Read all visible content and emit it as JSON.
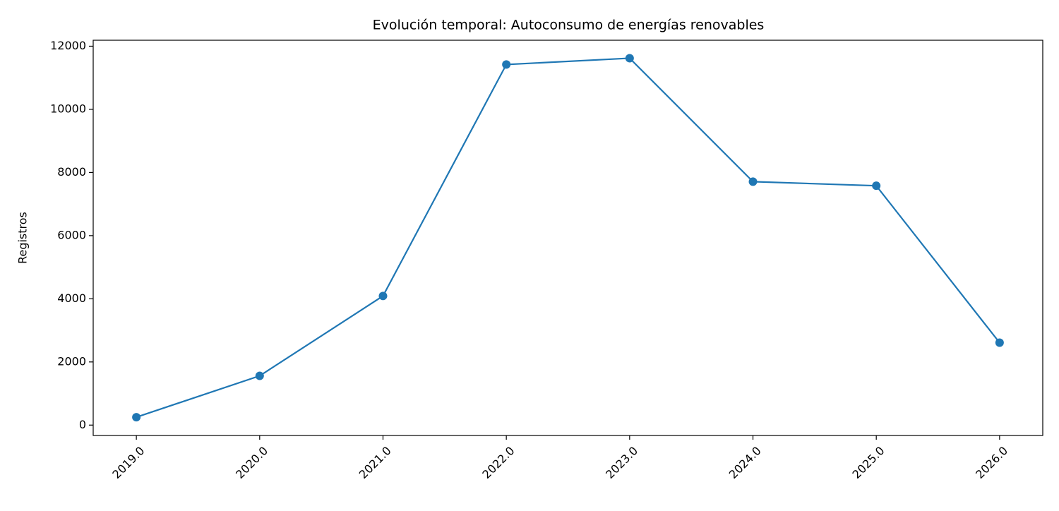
{
  "chart_data": {
    "type": "line",
    "title": "Evolución temporal: Autoconsumo de energías renovables",
    "y_label": "Registros",
    "x": [
      2019,
      2020,
      2021,
      2022,
      2023,
      2024,
      2025,
      2026
    ],
    "series": [
      {
        "name": "Registros",
        "color": "#1f77b4",
        "values": [
          250,
          1560,
          4090,
          11420,
          11620,
          7710,
          7580,
          2610
        ]
      }
    ],
    "xlim": [
      2018.65,
      2026.35
    ],
    "xticks": [
      {
        "value": 2019,
        "label": "2019.0"
      },
      {
        "value": 2020,
        "label": "2020.0"
      },
      {
        "value": 2021,
        "label": "2021.0"
      },
      {
        "value": 2022,
        "label": "2022.0"
      },
      {
        "value": 2023,
        "label": "2023.0"
      },
      {
        "value": 2024,
        "label": "2024.0"
      },
      {
        "value": 2025,
        "label": "2025.0"
      },
      {
        "value": 2026,
        "label": "2026.0"
      }
    ],
    "ylim": [
      -329,
      12189
    ],
    "yticks": [
      0,
      2000,
      4000,
      6000,
      8000,
      10000,
      12000
    ],
    "grid": false
  }
}
